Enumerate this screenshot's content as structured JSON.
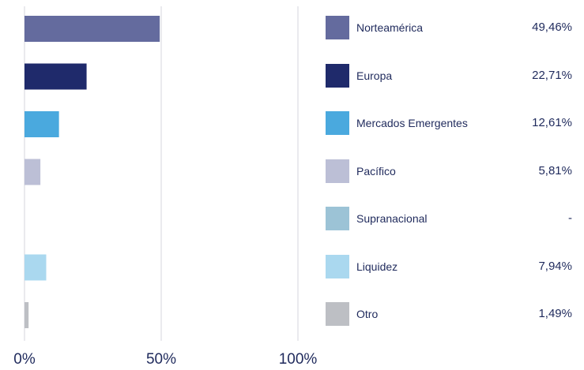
{
  "chart_data": {
    "type": "bar",
    "orientation": "horizontal",
    "categories": [
      "Norteamérica",
      "Europa",
      "Mercados Emergentes",
      "Pacífico",
      "Supranacional",
      "Liquidez",
      "Otro"
    ],
    "values": [
      49.46,
      22.71,
      12.61,
      5.81,
      0,
      7.94,
      1.49
    ],
    "value_labels": [
      "49,46%",
      "22,71%",
      "12,61%",
      "5,81%",
      "-",
      "7,94%",
      "1,49%"
    ],
    "colors": [
      "#646b9e",
      "#1f2a6b",
      "#4aa9de",
      "#bcbfd6",
      "#9cc3d6",
      "#aad8ef",
      "#bdbfc4"
    ],
    "xlim": [
      0,
      100
    ],
    "x_ticks": [
      0,
      50,
      100
    ],
    "x_tick_labels": [
      "0%",
      "50%",
      "100%"
    ],
    "grid": true,
    "legend": "right"
  }
}
